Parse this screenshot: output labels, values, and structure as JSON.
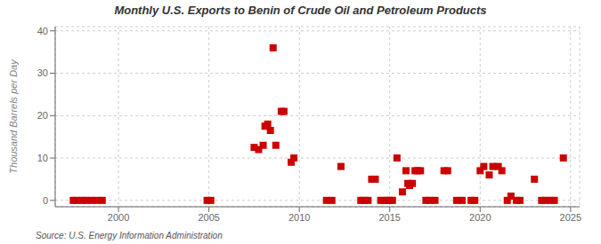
{
  "chart_data": {
    "type": "scatter",
    "title": "Monthly U.S. Exports to Benin of Crude Oil and Petroleum Products",
    "y_label": "Thousand Barrels per Day",
    "annotations": [
      "Source: U.S. Energy Information Administration"
    ],
    "x": [
      1997.5,
      1997.7,
      1998.0,
      1998.2,
      1998.5,
      1998.8,
      1999.1,
      2004.9,
      2005.1,
      2007.5,
      2007.75,
      2008.0,
      2008.1,
      2008.25,
      2008.4,
      2008.55,
      2008.7,
      2009.0,
      2009.15,
      2009.55,
      2009.7,
      2011.5,
      2011.8,
      2012.3,
      2013.4,
      2013.6,
      2013.8,
      2014.0,
      2014.2,
      2014.5,
      2014.7,
      2014.9,
      2015.0,
      2015.15,
      2015.4,
      2015.7,
      2015.9,
      2016.0,
      2016.1,
      2016.25,
      2016.4,
      2016.55,
      2016.7,
      2017.0,
      2017.2,
      2017.5,
      2018.0,
      2018.2,
      2018.7,
      2019.0,
      2019.5,
      2019.7,
      2020.0,
      2020.2,
      2020.5,
      2020.7,
      2021.0,
      2021.2,
      2021.5,
      2021.7,
      2022.0,
      2022.2,
      2023.0,
      2023.4,
      2023.6,
      2023.9,
      2024.1,
      2024.6
    ],
    "values": [
      0,
      0,
      0,
      0,
      0,
      0,
      0,
      0,
      0,
      12.5,
      12,
      13,
      17.5,
      18,
      16.5,
      36,
      13,
      21,
      21,
      9,
      10,
      0,
      0,
      8,
      0,
      0,
      0,
      5,
      5,
      0,
      0,
      0,
      0,
      0,
      10,
      2,
      7,
      4,
      3.5,
      4,
      7,
      7,
      7,
      0,
      0,
      0,
      7,
      7,
      0,
      0,
      0,
      0,
      7,
      8,
      6,
      8,
      8,
      7,
      0,
      1,
      0,
      0,
      5,
      0,
      0,
      0,
      0,
      10
    ],
    "color": "#cc0000",
    "marker": "square",
    "xlim": [
      1996.5,
      2025.5
    ],
    "ylim": [
      -1.5,
      41
    ],
    "xticks": [
      2000,
      2005,
      2010,
      2015,
      2020,
      2025
    ],
    "yticks": [
      0,
      10,
      20,
      30,
      40
    ],
    "grid": true
  }
}
